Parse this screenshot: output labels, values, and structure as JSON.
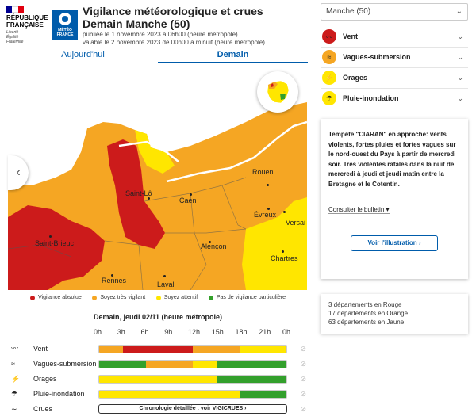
{
  "header": {
    "rf_lines": [
      "RÉPUBLIQUE",
      "FRANÇAISE"
    ],
    "rf_motto": [
      "Liberté",
      "Égalité",
      "Fraternité"
    ],
    "mf_lines": [
      "MÉTÉO",
      "FRANCE"
    ],
    "title_line1": "Vigilance météorologique et crues",
    "title_line2": "Demain Manche (50)",
    "published": "publiée le 1 novembre 2023 à 06h00 (heure métropole)",
    "validity": "valable le 2 novembre 2023 de 00h00 à minuit (heure métropole)"
  },
  "tabs": [
    {
      "label": "Aujourd'hui",
      "active": false
    },
    {
      "label": "Demain",
      "active": true
    }
  ],
  "map": {
    "cities": [
      "Rouen",
      "Saint-Lô",
      "Caen",
      "Évreux",
      "Versai",
      "Saint-Brieuc",
      "Alençon",
      "Chartres",
      "Rennes",
      "Laval"
    ]
  },
  "legend": [
    {
      "label": "Vigilance absolue",
      "color": "#cc1b1b"
    },
    {
      "label": "Soyez très vigilant",
      "color": "#f5a623"
    },
    {
      "label": "Soyez attentif",
      "color": "#ffe600"
    },
    {
      "label": "Pas de vigilance particulière",
      "color": "#33a02c"
    }
  ],
  "timeline": {
    "title": "Demain, jeudi 02/11 (heure métropole)",
    "hours": [
      "0h",
      "3h",
      "6h",
      "9h",
      "12h",
      "15h",
      "18h",
      "21h",
      "0h"
    ],
    "rows": [
      {
        "label": "Vent",
        "icon": "wind-icon",
        "segments": [
          {
            "to": 3,
            "color": "#f5a623"
          },
          {
            "to": 12,
            "color": "#cc1b1b"
          },
          {
            "to": 18,
            "color": "#f5a623"
          },
          {
            "to": 24,
            "color": "#ffe600"
          }
        ]
      },
      {
        "label": "Vagues-submersion",
        "icon": "waves-icon",
        "segments": [
          {
            "to": 6,
            "color": "#33a02c"
          },
          {
            "to": 12,
            "color": "#f5a623"
          },
          {
            "to": 15,
            "color": "#ffe600"
          },
          {
            "to": 24,
            "color": "#33a02c"
          }
        ]
      },
      {
        "label": "Orages",
        "icon": "storm-icon",
        "segments": [
          {
            "to": 15,
            "color": "#ffe600"
          },
          {
            "to": 24,
            "color": "#33a02c"
          }
        ]
      },
      {
        "label": "Pluie-inondation",
        "icon": "rain-icon",
        "segments": [
          {
            "to": 18,
            "color": "#ffe600"
          },
          {
            "to": 24,
            "color": "#33a02c"
          }
        ]
      }
    ],
    "crues_label": "Crues",
    "crues_button": "Chronologie détaillée : voir VIGICRUES  ›"
  },
  "sidebar": {
    "dept_select": "Manche (50)",
    "risks": [
      {
        "label": "Vent",
        "color": "#cc1b1b",
        "icon": "wind-icon"
      },
      {
        "label": "Vagues-submersion",
        "color": "#f5a623",
        "icon": "waves-icon"
      },
      {
        "label": "Orages",
        "color": "#ffe600",
        "icon": "storm-icon"
      },
      {
        "label": "Pluie-inondation",
        "color": "#ffe600",
        "icon": "rain-icon"
      }
    ],
    "bulletin_text": "Tempête \"CIARAN\" en approche: vents violents, fortes pluies et fortes vagues sur le nord-ouest du Pays à partir de mercredi soir. Très violentes rafales dans la nuit de mercredi à jeudi et jeudi matin entre la Bretagne et le Cotentin.",
    "bulletin_link": "Consulter le bulletin",
    "illustration_button": "Voir l'illustration",
    "counts": [
      "3 départements en Rouge",
      "17 départements en Orange",
      "63 départements en Jaune"
    ]
  }
}
